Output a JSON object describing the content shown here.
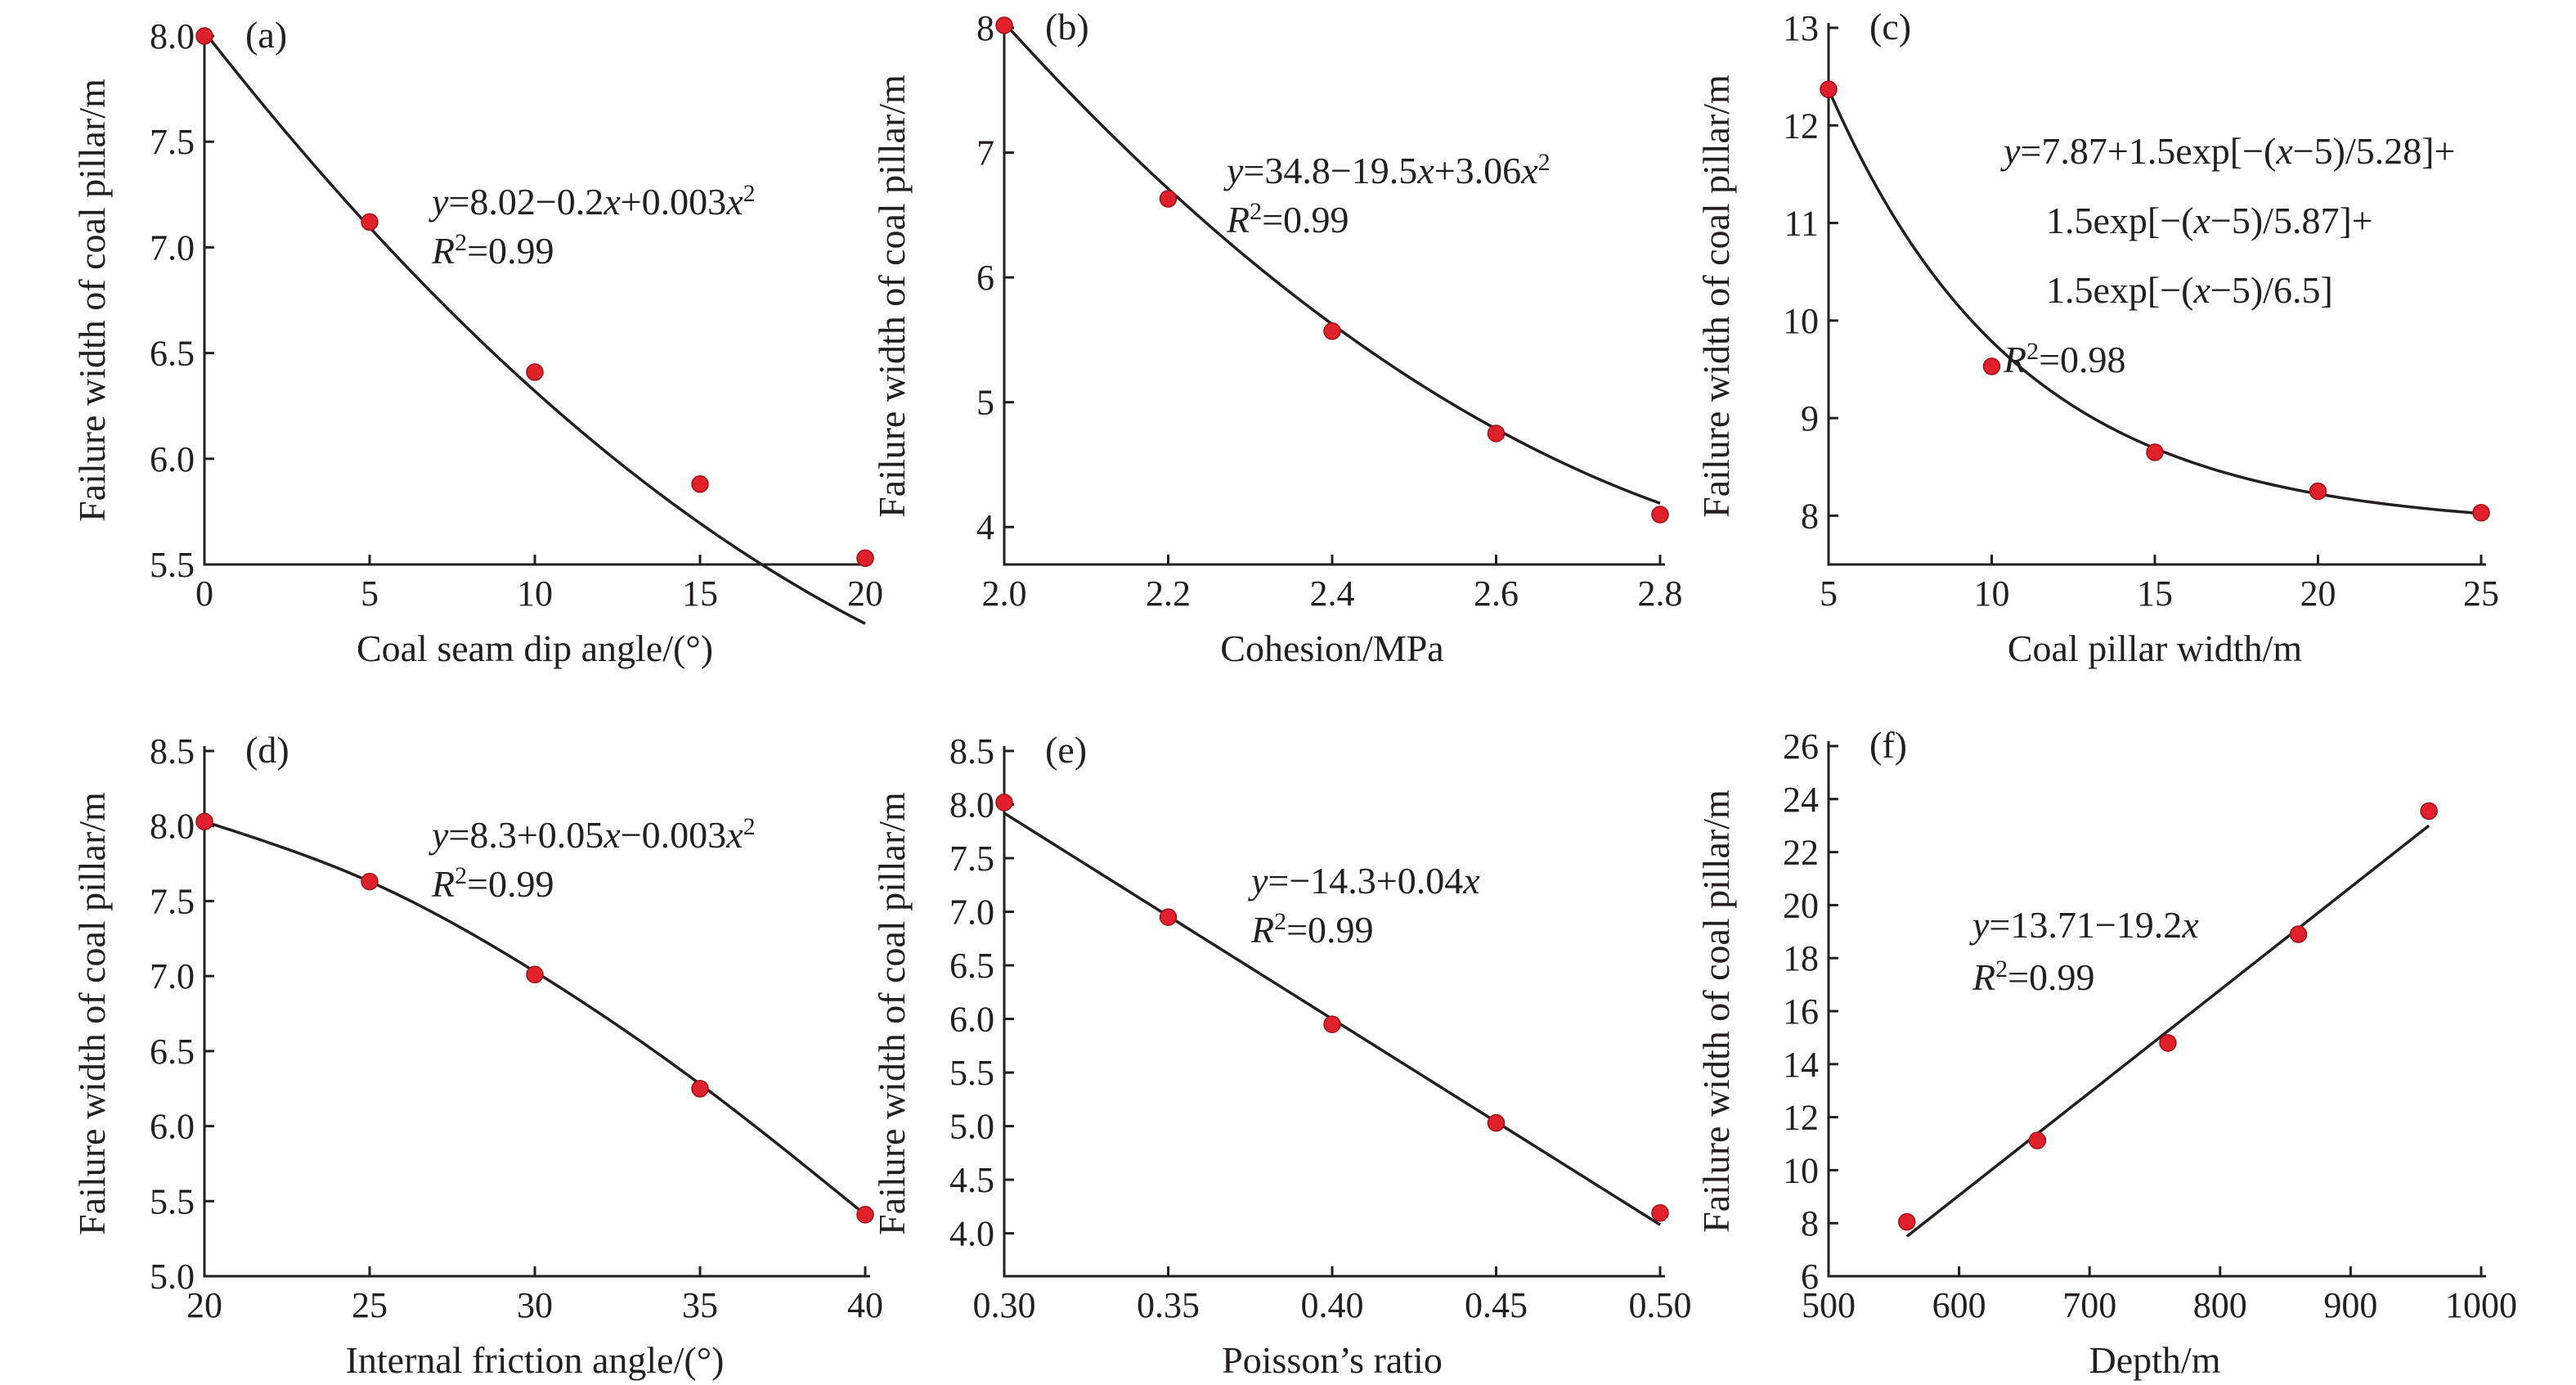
{
  "chart_data": [
    {
      "id": "a",
      "type": "scatter",
      "panel_label": "(a)",
      "xlabel": "Coal seam dip angle/(°)",
      "ylabel": "Failure width of coal pillar/m",
      "xlim": [
        0,
        20
      ],
      "ylim": [
        5.5,
        8.0
      ],
      "xticks": [
        0,
        5,
        10,
        15,
        20
      ],
      "yticks": [
        5.5,
        6.0,
        6.5,
        7.0,
        7.5,
        8.0
      ],
      "xtick_labels": [
        "0",
        "5",
        "10",
        "15",
        "20"
      ],
      "ytick_labels": [
        "5.5",
        "6.0",
        "6.5",
        "7.0",
        "7.5",
        "8.0"
      ],
      "x": [
        0,
        5,
        10,
        15,
        20
      ],
      "y": [
        8.0,
        7.12,
        6.41,
        5.88,
        5.53
      ],
      "fit": {
        "kind": "poly",
        "coef": [
          8.02,
          -0.2,
          0.003
        ]
      },
      "equation_lines": [
        [
          {
            "t": "y",
            "i": true
          },
          {
            "t": "=8.02−0.2"
          },
          {
            "t": "x",
            "i": true
          },
          {
            "t": "+0.003"
          },
          {
            "t": "x",
            "i": true
          },
          {
            "t": "2",
            "sup": true
          }
        ],
        [
          {
            "t": "R",
            "i": true
          },
          {
            "t": "2",
            "sup": true
          },
          {
            "t": "=0.99"
          }
        ]
      ]
    },
    {
      "id": "b",
      "type": "scatter",
      "panel_label": "(b)",
      "xlabel": "Cohesion/MPa",
      "ylabel": "Failure width of coal pillar/m",
      "xlim": [
        2.0,
        2.8
      ],
      "ylim": [
        3.7,
        8.0
      ],
      "xticks": [
        2.0,
        2.2,
        2.4,
        2.6,
        2.8
      ],
      "yticks": [
        4,
        5,
        6,
        7,
        8
      ],
      "xtick_labels": [
        "2.0",
        "2.2",
        "2.4",
        "2.6",
        "2.8"
      ],
      "ytick_labels": [
        "4",
        "5",
        "6",
        "7",
        "8"
      ],
      "x": [
        2.0,
        2.2,
        2.4,
        2.6,
        2.8
      ],
      "y": [
        8.02,
        6.63,
        5.57,
        4.75,
        4.1
      ],
      "fit": {
        "kind": "poly",
        "coef": [
          34.8,
          -19.5,
          3.06
        ]
      },
      "equation_lines": [
        [
          {
            "t": "y",
            "i": true
          },
          {
            "t": "=34.8−19.5"
          },
          {
            "t": "x",
            "i": true
          },
          {
            "t": "+3.06"
          },
          {
            "t": "x",
            "i": true
          },
          {
            "t": "2",
            "sup": true
          }
        ],
        [
          {
            "t": "R",
            "i": true
          },
          {
            "t": "2",
            "sup": true
          },
          {
            "t": "=0.99"
          }
        ]
      ]
    },
    {
      "id": "c",
      "type": "scatter",
      "panel_label": "(c)",
      "xlabel": "Coal pillar width/m",
      "ylabel": "Failure width of coal pillar/m",
      "xlim": [
        5,
        25
      ],
      "ylim": [
        7.5,
        13.0
      ],
      "xticks": [
        5,
        10,
        15,
        20,
        25
      ],
      "yticks": [
        8,
        9,
        10,
        11,
        12,
        13
      ],
      "xtick_labels": [
        "5",
        "10",
        "15",
        "20",
        "25"
      ],
      "ytick_labels": [
        "8",
        "9",
        "10",
        "11",
        "12",
        "13"
      ],
      "x": [
        5,
        10,
        15,
        20,
        25
      ],
      "y": [
        12.37,
        9.53,
        8.65,
        8.25,
        8.03
      ],
      "fit": {
        "kind": "exp3",
        "c": 7.87,
        "a": 1.5,
        "x0": 5,
        "t": [
          5.28,
          5.87,
          6.5
        ]
      },
      "equation_lines": [
        [
          {
            "t": "y",
            "i": true
          },
          {
            "t": "=7.87+1.5exp[−("
          },
          {
            "t": "x",
            "i": true
          },
          {
            "t": "−5)/5.28]+"
          }
        ],
        [
          {
            "t": "1.5exp[−("
          },
          {
            "t": "x",
            "i": true
          },
          {
            "t": "−5)/5.87]+"
          }
        ],
        [
          {
            "t": "1.5exp[−("
          },
          {
            "t": "x",
            "i": true
          },
          {
            "t": "−5)/6.5]"
          }
        ],
        [
          {
            "t": "R",
            "i": true
          },
          {
            "t": "2",
            "sup": true
          },
          {
            "t": "=0.98"
          }
        ]
      ]
    },
    {
      "id": "d",
      "type": "scatter",
      "panel_label": "(d)",
      "xlabel": "Internal friction angle/(°)",
      "ylabel": "Failure width of coal pillar/m",
      "xlim": [
        20,
        40
      ],
      "ylim": [
        5.0,
        8.5
      ],
      "xticks": [
        20,
        25,
        30,
        35,
        40
      ],
      "yticks": [
        5.0,
        5.5,
        6.0,
        6.5,
        7.0,
        7.5,
        8.0,
        8.5
      ],
      "xtick_labels": [
        "20",
        "25",
        "30",
        "35",
        "40"
      ],
      "ytick_labels": [
        "5.0",
        "5.5",
        "6.0",
        "6.5",
        "7.0",
        "7.5",
        "8.0",
        "8.5"
      ],
      "x": [
        20,
        25,
        30,
        35,
        40
      ],
      "y": [
        8.03,
        7.63,
        7.01,
        6.25,
        5.41
      ],
      "fit": {
        "kind": "points",
        "x": [
          20,
          25,
          30,
          35,
          40
        ],
        "y": [
          8.03,
          7.63,
          7.03,
          6.28,
          5.41
        ]
      },
      "equation_lines": [
        [
          {
            "t": "y",
            "i": true
          },
          {
            "t": "=8.3+0.05"
          },
          {
            "t": "x",
            "i": true
          },
          {
            "t": "−0.003"
          },
          {
            "t": "x",
            "i": true
          },
          {
            "t": "2",
            "sup": true
          }
        ],
        [
          {
            "t": "R",
            "i": true
          },
          {
            "t": "2",
            "sup": true
          },
          {
            "t": "=0.99"
          }
        ]
      ]
    },
    {
      "id": "e",
      "type": "scatter",
      "panel_label": "(e)",
      "xlabel": "Poisson’s ratio",
      "ylabel": "Failure width of coal pillar/m",
      "xlim": [
        0.3,
        0.5
      ],
      "ylim": [
        3.6,
        8.5
      ],
      "xticks": [
        0.3,
        0.35,
        0.4,
        0.45,
        0.5
      ],
      "yticks": [
        4.0,
        4.5,
        5.0,
        5.5,
        6.0,
        6.5,
        7.0,
        7.5,
        8.0,
        8.5
      ],
      "xtick_labels": [
        "0.30",
        "0.35",
        "0.40",
        "0.45",
        "0.50"
      ],
      "ytick_labels": [
        "4.0",
        "4.5",
        "5.0",
        "5.5",
        "6.0",
        "6.5",
        "7.0",
        "7.5",
        "8.0",
        "8.5"
      ],
      "x": [
        0.3,
        0.35,
        0.4,
        0.45,
        0.5
      ],
      "y": [
        8.02,
        6.95,
        5.95,
        5.03,
        4.19
      ],
      "fit": {
        "kind": "points",
        "x": [
          0.3,
          0.5
        ],
        "y": [
          7.92,
          4.08
        ]
      },
      "equation_lines": [
        [
          {
            "t": "y",
            "i": true
          },
          {
            "t": "=−14.3+0.04"
          },
          {
            "t": "x",
            "i": true
          }
        ],
        [
          {
            "t": "R",
            "i": true
          },
          {
            "t": "2",
            "sup": true
          },
          {
            "t": "=0.99"
          }
        ]
      ]
    },
    {
      "id": "f",
      "type": "scatter",
      "panel_label": "(f)",
      "xlabel": "Depth/m",
      "ylabel": "Failure width of coal pillar/m",
      "xlim": [
        500,
        1000
      ],
      "ylim": [
        6,
        26
      ],
      "xticks": [
        500,
        600,
        700,
        800,
        900,
        1000
      ],
      "yticks": [
        6,
        8,
        10,
        12,
        14,
        16,
        18,
        20,
        22,
        24,
        26
      ],
      "xtick_labels": [
        "500",
        "600",
        "700",
        "800",
        "900",
        "1000"
      ],
      "ytick_labels": [
        "6",
        "8",
        "10",
        "12",
        "14",
        "16",
        "18",
        "20",
        "22",
        "24",
        "26"
      ],
      "x": [
        560,
        660,
        760,
        860,
        960
      ],
      "y": [
        8.05,
        11.12,
        14.8,
        18.9,
        23.55
      ],
      "fit": {
        "kind": "points",
        "x": [
          560,
          960
        ],
        "y": [
          7.5,
          23.0
        ]
      },
      "equation_lines": [
        [
          {
            "t": "y",
            "i": true
          },
          {
            "t": "=13.71−19.2"
          },
          {
            "t": "x",
            "i": true
          }
        ],
        [
          {
            "t": "R",
            "i": true
          },
          {
            "t": "2",
            "sup": true
          },
          {
            "t": "=0.99"
          }
        ]
      ]
    }
  ]
}
